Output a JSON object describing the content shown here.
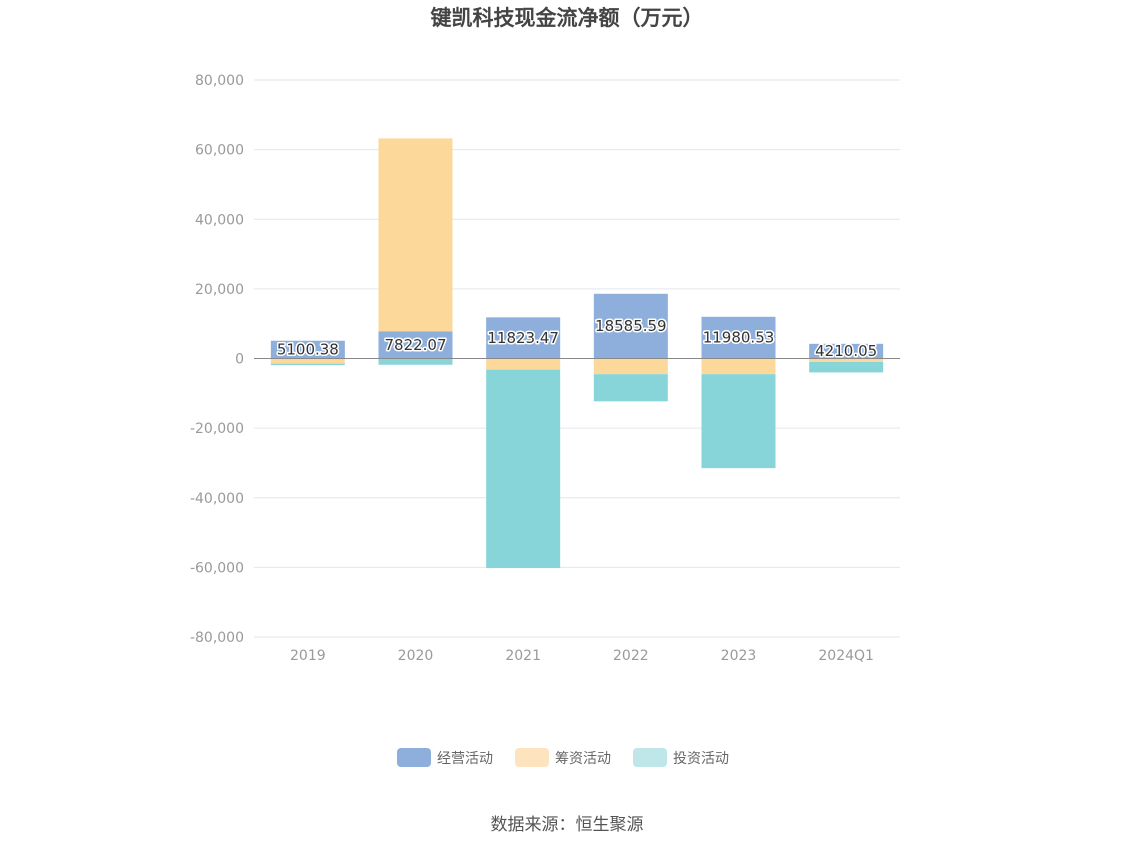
{
  "chart_data": {
    "type": "bar",
    "stacked": true,
    "title": "键凯科技现金流净额（万元）",
    "categories": [
      "2019",
      "2020",
      "2021",
      "2022",
      "2023",
      "2024Q1"
    ],
    "series": [
      {
        "name": "经营活动",
        "color": "#8eaedb",
        "values": [
          5100.38,
          7822.07,
          11823.47,
          18585.59,
          11980.53,
          4210.05
        ]
      },
      {
        "name": "筹资活动",
        "color": "#fdd89b",
        "values": [
          -1500,
          55400,
          -3200,
          -4500,
          -4500,
          -1000
        ]
      },
      {
        "name": "投资活动",
        "color": "#88d5d9",
        "values": [
          -400,
          -1800,
          -57000,
          -7800,
          -27000,
          -3000
        ]
      }
    ],
    "data_labels": [
      "5100.38",
      "7822.07",
      "11823.47",
      "18585.59",
      "11980.53",
      "4210.05"
    ],
    "ylim": [
      -80000,
      80000
    ],
    "yticks": [
      80000,
      60000,
      40000,
      20000,
      0,
      -20000,
      -40000,
      -60000,
      -80000
    ],
    "ytick_labels": [
      "80,000",
      "60,000",
      "40,000",
      "20,000",
      "0",
      "-20,000",
      "-40,000",
      "-60,000",
      "-80,000"
    ],
    "grid": true,
    "legend_position": "bottom",
    "xlabel": "",
    "ylabel": ""
  },
  "legend_colors": {
    "经营活动": "#8eaedb",
    "筹资活动": "#fde4bf",
    "投资活动": "#bfe7ea"
  },
  "source_text": "数据来源：恒生聚源"
}
